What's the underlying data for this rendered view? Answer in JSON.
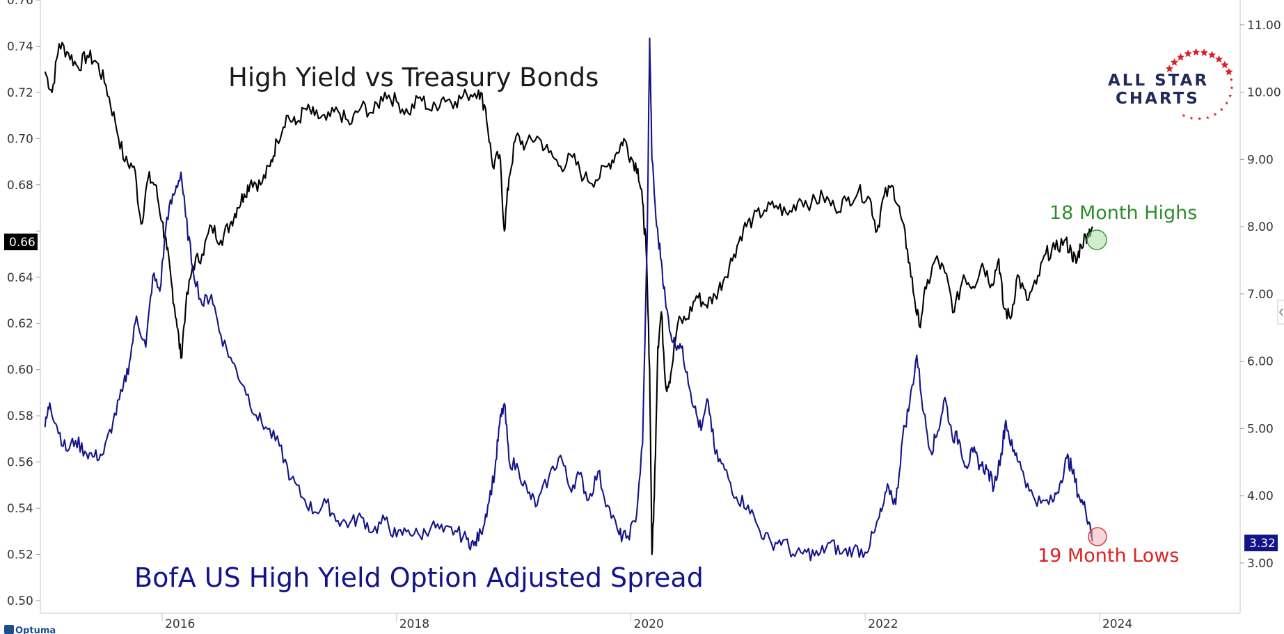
{
  "chart_data": {
    "type": "line",
    "title": "High Yield vs Treasury Bonds",
    "subtitle": "BofA US High Yield Option Adjusted Spread",
    "x_ticks": [
      "2016",
      "2018",
      "2020",
      "2022",
      "2024"
    ],
    "x_range": [
      2014.96,
      2025.2
    ],
    "y_left": {
      "ticks": [
        "0.76",
        "0.74",
        "0.72",
        "0.70",
        "0.68",
        "0.66",
        "0.64",
        "0.62",
        "0.60",
        "0.58",
        "0.56",
        "0.54",
        "0.52",
        "0.50"
      ],
      "range": [
        0.5,
        0.76
      ],
      "current_value_label": "0.66"
    },
    "y_right": {
      "ticks": [
        "11.00",
        "10.00",
        "9.00",
        "8.00",
        "7.00",
        "6.00",
        "5.00",
        "4.00",
        "3.00"
      ],
      "range": [
        2.44,
        11.37
      ],
      "current_value_label": "3.32"
    },
    "grid": false,
    "series": [
      {
        "axis": "left",
        "color": "#000000",
        "points": [
          [
            2015.0,
            0.729
          ],
          [
            2015.06,
            0.72
          ],
          [
            2015.12,
            0.741
          ],
          [
            2015.2,
            0.737
          ],
          [
            2015.28,
            0.731
          ],
          [
            2015.36,
            0.736
          ],
          [
            2015.44,
            0.733
          ],
          [
            2015.52,
            0.723
          ],
          [
            2015.6,
            0.707
          ],
          [
            2015.68,
            0.69
          ],
          [
            2015.76,
            0.688
          ],
          [
            2015.82,
            0.663
          ],
          [
            2015.88,
            0.683
          ],
          [
            2015.94,
            0.68
          ],
          [
            2016.0,
            0.664
          ],
          [
            2016.04,
            0.652
          ],
          [
            2016.08,
            0.637
          ],
          [
            2016.12,
            0.622
          ],
          [
            2016.16,
            0.605
          ],
          [
            2016.2,
            0.627
          ],
          [
            2016.26,
            0.645
          ],
          [
            2016.34,
            0.65
          ],
          [
            2016.42,
            0.662
          ],
          [
            2016.5,
            0.656
          ],
          [
            2016.58,
            0.663
          ],
          [
            2016.64,
            0.67
          ],
          [
            2016.7,
            0.676
          ],
          [
            2016.76,
            0.682
          ],
          [
            2016.84,
            0.68
          ],
          [
            2016.92,
            0.688
          ],
          [
            2016.98,
            0.699
          ],
          [
            2017.06,
            0.71
          ],
          [
            2017.14,
            0.706
          ],
          [
            2017.22,
            0.713
          ],
          [
            2017.3,
            0.71
          ],
          [
            2017.4,
            0.708
          ],
          [
            2017.5,
            0.712
          ],
          [
            2017.6,
            0.706
          ],
          [
            2017.7,
            0.714
          ],
          [
            2017.8,
            0.711
          ],
          [
            2017.9,
            0.72
          ],
          [
            2018.0,
            0.716
          ],
          [
            2018.1,
            0.711
          ],
          [
            2018.2,
            0.718
          ],
          [
            2018.3,
            0.712
          ],
          [
            2018.4,
            0.718
          ],
          [
            2018.5,
            0.716
          ],
          [
            2018.6,
            0.719
          ],
          [
            2018.7,
            0.721
          ],
          [
            2018.76,
            0.713
          ],
          [
            2018.82,
            0.688
          ],
          [
            2018.88,
            0.693
          ],
          [
            2018.92,
            0.66
          ],
          [
            2018.96,
            0.683
          ],
          [
            2019.02,
            0.701
          ],
          [
            2019.1,
            0.697
          ],
          [
            2019.2,
            0.701
          ],
          [
            2019.3,
            0.694
          ],
          [
            2019.4,
            0.688
          ],
          [
            2019.5,
            0.692
          ],
          [
            2019.6,
            0.683
          ],
          [
            2019.7,
            0.682
          ],
          [
            2019.8,
            0.688
          ],
          [
            2019.88,
            0.694
          ],
          [
            2019.94,
            0.7
          ],
          [
            2020.0,
            0.692
          ],
          [
            2020.06,
            0.687
          ],
          [
            2020.1,
            0.672
          ],
          [
            2020.13,
            0.652
          ],
          [
            2020.16,
            0.6
          ],
          [
            2020.18,
            0.52
          ],
          [
            2020.2,
            0.545
          ],
          [
            2020.23,
            0.61
          ],
          [
            2020.26,
            0.625
          ],
          [
            2020.3,
            0.592
          ],
          [
            2020.34,
            0.598
          ],
          [
            2020.4,
            0.62
          ],
          [
            2020.48,
            0.622
          ],
          [
            2020.56,
            0.632
          ],
          [
            2020.64,
            0.628
          ],
          [
            2020.72,
            0.632
          ],
          [
            2020.8,
            0.64
          ],
          [
            2020.88,
            0.65
          ],
          [
            2020.96,
            0.661
          ],
          [
            2021.04,
            0.665
          ],
          [
            2021.14,
            0.669
          ],
          [
            2021.24,
            0.671
          ],
          [
            2021.34,
            0.667
          ],
          [
            2021.44,
            0.674
          ],
          [
            2021.54,
            0.672
          ],
          [
            2021.64,
            0.675
          ],
          [
            2021.74,
            0.67
          ],
          [
            2021.84,
            0.673
          ],
          [
            2021.94,
            0.677
          ],
          [
            2022.04,
            0.674
          ],
          [
            2022.1,
            0.66
          ],
          [
            2022.16,
            0.675
          ],
          [
            2022.24,
            0.679
          ],
          [
            2022.3,
            0.667
          ],
          [
            2022.36,
            0.652
          ],
          [
            2022.42,
            0.631
          ],
          [
            2022.46,
            0.619
          ],
          [
            2022.52,
            0.635
          ],
          [
            2022.6,
            0.648
          ],
          [
            2022.68,
            0.642
          ],
          [
            2022.76,
            0.625
          ],
          [
            2022.84,
            0.641
          ],
          [
            2022.92,
            0.636
          ],
          [
            2023.0,
            0.646
          ],
          [
            2023.08,
            0.637
          ],
          [
            2023.14,
            0.648
          ],
          [
            2023.18,
            0.627
          ],
          [
            2023.24,
            0.622
          ],
          [
            2023.3,
            0.641
          ],
          [
            2023.38,
            0.63
          ],
          [
            2023.46,
            0.637
          ],
          [
            2023.54,
            0.65
          ],
          [
            2023.62,
            0.652
          ],
          [
            2023.7,
            0.656
          ],
          [
            2023.76,
            0.651
          ],
          [
            2023.8,
            0.646
          ],
          [
            2023.84,
            0.654
          ],
          [
            2023.9,
            0.659
          ],
          [
            2023.94,
            0.662
          ]
        ]
      },
      {
        "axis": "right",
        "color": "#14148a",
        "points": [
          [
            2015.0,
            5.02
          ],
          [
            2015.04,
            5.38
          ],
          [
            2015.1,
            5.04
          ],
          [
            2015.18,
            4.67
          ],
          [
            2015.26,
            4.82
          ],
          [
            2015.34,
            4.66
          ],
          [
            2015.42,
            4.58
          ],
          [
            2015.5,
            4.63
          ],
          [
            2015.58,
            5.1
          ],
          [
            2015.66,
            5.55
          ],
          [
            2015.72,
            5.98
          ],
          [
            2015.78,
            6.67
          ],
          [
            2015.86,
            6.21
          ],
          [
            2015.92,
            7.27
          ],
          [
            2015.98,
            7.04
          ],
          [
            2016.04,
            8.14
          ],
          [
            2016.1,
            8.47
          ],
          [
            2016.16,
            8.81
          ],
          [
            2016.2,
            8.15
          ],
          [
            2016.26,
            7.4
          ],
          [
            2016.34,
            6.84
          ],
          [
            2016.42,
            6.99
          ],
          [
            2016.5,
            6.39
          ],
          [
            2016.6,
            5.98
          ],
          [
            2016.7,
            5.62
          ],
          [
            2016.8,
            5.2
          ],
          [
            2016.9,
            4.99
          ],
          [
            2017.0,
            4.74
          ],
          [
            2017.1,
            4.25
          ],
          [
            2017.2,
            3.97
          ],
          [
            2017.3,
            3.76
          ],
          [
            2017.4,
            3.89
          ],
          [
            2017.5,
            3.63
          ],
          [
            2017.6,
            3.59
          ],
          [
            2017.7,
            3.68
          ],
          [
            2017.8,
            3.47
          ],
          [
            2017.9,
            3.64
          ],
          [
            2018.0,
            3.39
          ],
          [
            2018.1,
            3.49
          ],
          [
            2018.2,
            3.4
          ],
          [
            2018.3,
            3.56
          ],
          [
            2018.4,
            3.46
          ],
          [
            2018.5,
            3.48
          ],
          [
            2018.6,
            3.35
          ],
          [
            2018.66,
            3.26
          ],
          [
            2018.72,
            3.45
          ],
          [
            2018.78,
            3.86
          ],
          [
            2018.84,
            4.38
          ],
          [
            2018.88,
            5.07
          ],
          [
            2018.92,
            5.37
          ],
          [
            2018.96,
            4.53
          ],
          [
            2019.04,
            4.4
          ],
          [
            2019.12,
            4.04
          ],
          [
            2019.2,
            3.86
          ],
          [
            2019.3,
            4.28
          ],
          [
            2019.4,
            4.6
          ],
          [
            2019.48,
            4.11
          ],
          [
            2019.56,
            4.32
          ],
          [
            2019.64,
            3.94
          ],
          [
            2019.72,
            4.36
          ],
          [
            2019.8,
            3.86
          ],
          [
            2019.9,
            3.42
          ],
          [
            2019.96,
            3.37
          ],
          [
            2020.04,
            3.61
          ],
          [
            2020.1,
            4.78
          ],
          [
            2020.14,
            7.9
          ],
          [
            2020.16,
            10.8
          ],
          [
            2020.18,
            9.0
          ],
          [
            2020.22,
            8.0
          ],
          [
            2020.26,
            7.5
          ],
          [
            2020.3,
            6.8
          ],
          [
            2020.36,
            6.28
          ],
          [
            2020.42,
            6.26
          ],
          [
            2020.48,
            5.84
          ],
          [
            2020.54,
            5.31
          ],
          [
            2020.6,
            4.97
          ],
          [
            2020.66,
            5.41
          ],
          [
            2020.72,
            4.62
          ],
          [
            2020.8,
            4.39
          ],
          [
            2020.9,
            3.98
          ],
          [
            2021.0,
            3.86
          ],
          [
            2021.1,
            3.48
          ],
          [
            2021.2,
            3.29
          ],
          [
            2021.3,
            3.34
          ],
          [
            2021.4,
            3.1
          ],
          [
            2021.5,
            3.16
          ],
          [
            2021.6,
            3.11
          ],
          [
            2021.7,
            3.3
          ],
          [
            2021.8,
            3.14
          ],
          [
            2021.9,
            3.21
          ],
          [
            2022.0,
            3.16
          ],
          [
            2022.08,
            3.46
          ],
          [
            2022.14,
            3.77
          ],
          [
            2022.2,
            4.13
          ],
          [
            2022.26,
            3.87
          ],
          [
            2022.32,
            4.88
          ],
          [
            2022.38,
            5.38
          ],
          [
            2022.44,
            6.09
          ],
          [
            2022.5,
            5.22
          ],
          [
            2022.56,
            4.66
          ],
          [
            2022.62,
            4.96
          ],
          [
            2022.68,
            5.46
          ],
          [
            2022.74,
            4.91
          ],
          [
            2022.8,
            4.83
          ],
          [
            2022.86,
            4.44
          ],
          [
            2022.92,
            4.65
          ],
          [
            2022.98,
            4.46
          ],
          [
            2023.04,
            4.39
          ],
          [
            2023.1,
            4.13
          ],
          [
            2023.16,
            4.63
          ],
          [
            2023.2,
            5.12
          ],
          [
            2023.26,
            4.66
          ],
          [
            2023.32,
            4.51
          ],
          [
            2023.4,
            4.07
          ],
          [
            2023.5,
            3.89
          ],
          [
            2023.6,
            3.91
          ],
          [
            2023.66,
            4.17
          ],
          [
            2023.72,
            4.56
          ],
          [
            2023.76,
            4.43
          ],
          [
            2023.82,
            4.02
          ],
          [
            2023.88,
            3.79
          ],
          [
            2023.92,
            3.56
          ],
          [
            2023.94,
            3.32
          ]
        ]
      }
    ],
    "annotations": [
      {
        "text": "18 Month Highs",
        "color": "#2e8b2e"
      },
      {
        "text": "19 Month Lows",
        "color": "#e02020"
      }
    ]
  },
  "logo": {
    "line1": "ALL STAR",
    "line2": "CHARTS"
  },
  "footer_brand": "Optuma"
}
